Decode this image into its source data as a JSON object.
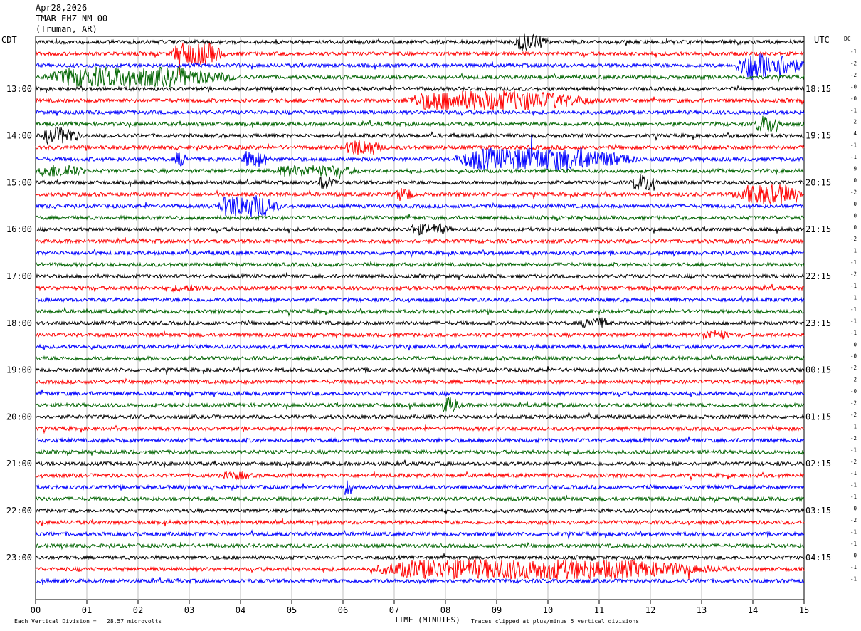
{
  "header": {
    "date": "Apr28,2026",
    "station": "TMAR EHZ NM 00",
    "location": "(Truman, AR)"
  },
  "left_axis_label": "CDT",
  "right_axis_label": "UTC",
  "dc_label": "DC",
  "footer": {
    "xlabel": "TIME (MINUTES)",
    "scale_note": "Each Vertical Division =   28.57 microvolts",
    "clip_note": "Traces clipped at plus/minus 5 vertical divisions"
  },
  "chart_data": {
    "type": "line",
    "title": "TMAR EHZ NM 00",
    "xlabel": "TIME (MINUTES)",
    "xlim": [
      0,
      15
    ],
    "x_ticks": [
      "00",
      "01",
      "02",
      "03",
      "04",
      "05",
      "06",
      "07",
      "08",
      "09",
      "10",
      "11",
      "12",
      "13",
      "14",
      "15"
    ],
    "rows_per_hour": 4,
    "minutes_per_row": 15,
    "trace_colors": [
      "#000000",
      "#ff0000",
      "#0000ff",
      "#006400"
    ],
    "left_time_labels": [
      {
        "row": 4,
        "label": "13:00"
      },
      {
        "row": 8,
        "label": "14:00"
      },
      {
        "row": 12,
        "label": "15:00"
      },
      {
        "row": 16,
        "label": "16:00"
      },
      {
        "row": 20,
        "label": "17:00"
      },
      {
        "row": 24,
        "label": "18:00"
      },
      {
        "row": 28,
        "label": "19:00"
      },
      {
        "row": 32,
        "label": "20:00"
      },
      {
        "row": 36,
        "label": "21:00"
      },
      {
        "row": 40,
        "label": "22:00"
      },
      {
        "row": 44,
        "label": "23:00"
      }
    ],
    "right_time_labels": [
      {
        "row": 4,
        "label": "18:15"
      },
      {
        "row": 8,
        "label": "19:15"
      },
      {
        "row": 12,
        "label": "20:15"
      },
      {
        "row": 16,
        "label": "21:15"
      },
      {
        "row": 20,
        "label": "22:15"
      },
      {
        "row": 24,
        "label": "23:15"
      },
      {
        "row": 28,
        "label": "00:15"
      },
      {
        "row": 32,
        "label": "01:15"
      },
      {
        "row": 36,
        "label": "02:15"
      },
      {
        "row": 40,
        "label": "03:15"
      },
      {
        "row": 44,
        "label": "04:15"
      }
    ],
    "dc_offsets": [
      "-1",
      "-2",
      "-2",
      "-0",
      "-0",
      "-1",
      "-2",
      "4",
      "-1",
      "-1",
      "9",
      "0",
      "-2",
      "0",
      "0",
      "0",
      "-2",
      "-1",
      "-1",
      "-2",
      "-1",
      "-1",
      "-1",
      "-1",
      "-1",
      "-0",
      "-0",
      "-2",
      "-2",
      "-0",
      "-2",
      "-2",
      "-1",
      "-2",
      "-1",
      "-2",
      "-1",
      "-1",
      "-1",
      "0",
      "-2",
      "-1",
      "-1",
      "0",
      "-1",
      "-1"
    ],
    "bursts": [
      {
        "row": 0,
        "start": 9.3,
        "end": 10.0,
        "amp": 12
      },
      {
        "row": 1,
        "start": 2.6,
        "end": 3.7,
        "amp": 16
      },
      {
        "row": 2,
        "start": 13.6,
        "end": 15.0,
        "amp": 18
      },
      {
        "row": 3,
        "start": 0.0,
        "end": 4.0,
        "amp": 14
      },
      {
        "row": 5,
        "start": 7.0,
        "end": 11.0,
        "amp": 14
      },
      {
        "row": 7,
        "start": 14.0,
        "end": 14.6,
        "amp": 12
      },
      {
        "row": 8,
        "start": 0.1,
        "end": 0.9,
        "amp": 12
      },
      {
        "row": 9,
        "start": 6.0,
        "end": 6.8,
        "amp": 12
      },
      {
        "row": 10,
        "start": 2.7,
        "end": 3.0,
        "amp": 10
      },
      {
        "row": 10,
        "start": 4.0,
        "end": 4.6,
        "amp": 12
      },
      {
        "row": 10,
        "start": 8.0,
        "end": 11.8,
        "amp": 16
      },
      {
        "row": 11,
        "start": 0.0,
        "end": 1.0,
        "amp": 10
      },
      {
        "row": 11,
        "start": 4.5,
        "end": 6.5,
        "amp": 8
      },
      {
        "row": 12,
        "start": 5.5,
        "end": 5.9,
        "amp": 10
      },
      {
        "row": 12,
        "start": 11.6,
        "end": 12.2,
        "amp": 12
      },
      {
        "row": 13,
        "start": 7.0,
        "end": 7.4,
        "amp": 10
      },
      {
        "row": 13,
        "start": 13.6,
        "end": 15.0,
        "amp": 14
      },
      {
        "row": 14,
        "start": 3.5,
        "end": 4.8,
        "amp": 16
      },
      {
        "row": 16,
        "start": 7.2,
        "end": 8.2,
        "amp": 8
      },
      {
        "row": 21,
        "start": 2.5,
        "end": 3.6,
        "amp": 5
      },
      {
        "row": 24,
        "start": 10.6,
        "end": 11.3,
        "amp": 8
      },
      {
        "row": 25,
        "start": 12.9,
        "end": 13.6,
        "amp": 7
      },
      {
        "row": 31,
        "start": 7.9,
        "end": 8.3,
        "amp": 12
      },
      {
        "row": 37,
        "start": 3.6,
        "end": 4.3,
        "amp": 6
      },
      {
        "row": 38,
        "start": 6.0,
        "end": 6.2,
        "amp": 12
      },
      {
        "row": 45,
        "start": 6.2,
        "end": 13.5,
        "amp": 14
      }
    ]
  }
}
